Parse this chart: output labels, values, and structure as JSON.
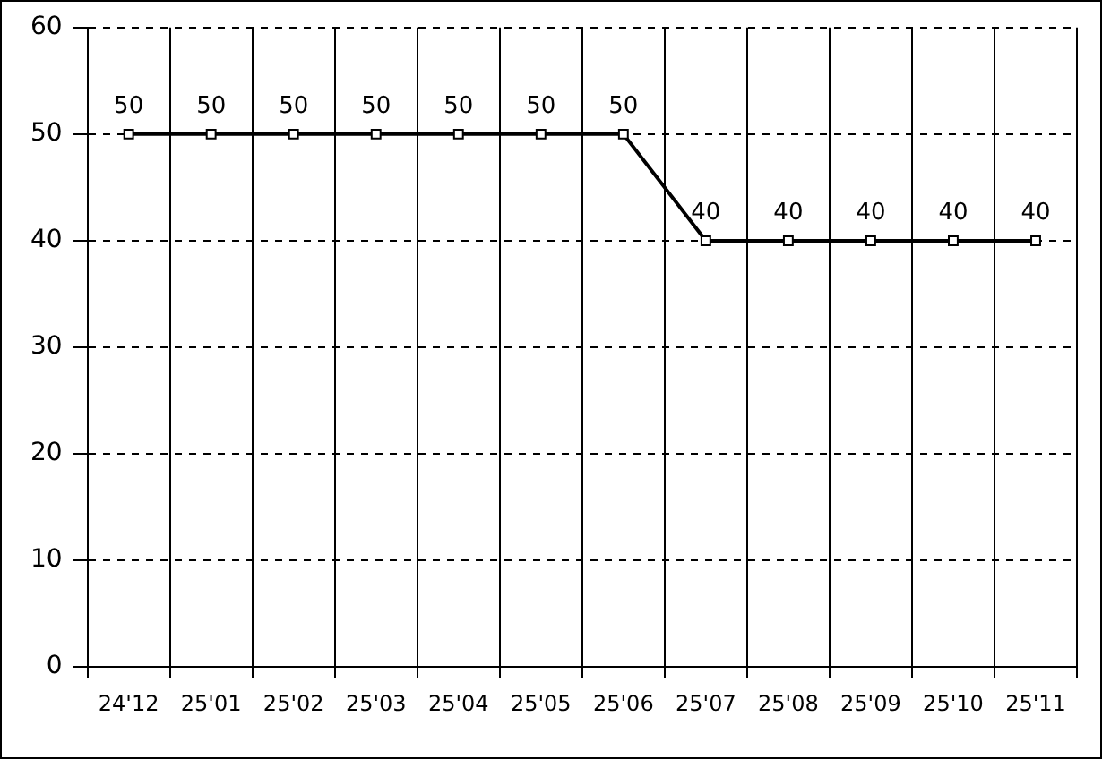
{
  "chart_data": {
    "type": "line",
    "categories": [
      "24'12",
      "25'01",
      "25'02",
      "25'03",
      "25'04",
      "25'05",
      "25'06",
      "25'07",
      "25'08",
      "25'09",
      "25'10",
      "25'11"
    ],
    "series": [
      {
        "color": "#000000",
        "values": [
          50,
          50,
          50,
          50,
          50,
          50,
          50,
          40,
          40,
          40,
          40,
          40
        ]
      }
    ],
    "ylim": [
      0,
      60
    ],
    "yticks": [
      0,
      10,
      20,
      30,
      40,
      50,
      60
    ],
    "grid": true,
    "legend": false,
    "marker": "square",
    "line_style": "solid",
    "data_labels": true
  }
}
